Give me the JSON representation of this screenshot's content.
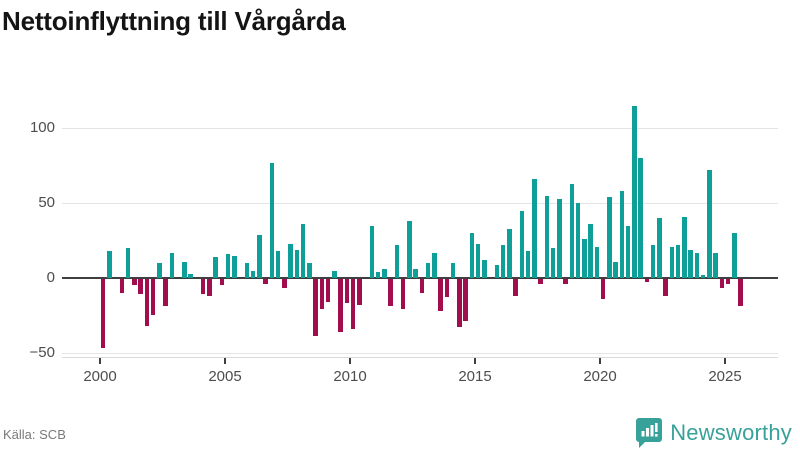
{
  "title": "Nettoinflyttning till Vårgårda",
  "source": "Källa: SCB",
  "brand": {
    "name": "Newsworthy",
    "color": "#38a199"
  },
  "chart_data": {
    "type": "bar",
    "title": "Nettoinflyttning till Vårgårda",
    "xlabel": "",
    "ylabel": "",
    "x_unit": "quarter",
    "quarters": [
      "Q1",
      "Q2",
      "Q3",
      "Q4"
    ],
    "first_quarter": "2000Q1",
    "last_quarter": "2025Q3",
    "values_by_year": {
      "2000": [
        -46,
        18,
        0,
        -9
      ],
      "2001": [
        20,
        -4,
        -10,
        -31
      ],
      "2002": [
        -24,
        10,
        -18,
        17
      ],
      "2003": [
        0,
        11,
        3,
        0
      ],
      "2004": [
        -10,
        -11,
        14,
        -4
      ],
      "2005": [
        16,
        15,
        0,
        10
      ],
      "2006": [
        5,
        29,
        -3,
        77
      ],
      "2007": [
        18,
        -6,
        23,
        19
      ],
      "2008": [
        36,
        10,
        -38,
        -20
      ],
      "2009": [
        -15,
        5,
        -35,
        -16
      ],
      "2010": [
        -33,
        -17,
        0,
        35
      ],
      "2011": [
        4,
        6,
        -18,
        22
      ],
      "2012": [
        -20,
        38,
        6,
        -9
      ],
      "2013": [
        10,
        17,
        -21,
        -12
      ],
      "2014": [
        10,
        -32,
        -28,
        30
      ],
      "2015": [
        23,
        12,
        0,
        9
      ],
      "2016": [
        22,
        33,
        -11,
        45
      ],
      "2017": [
        18,
        66,
        -3,
        55
      ],
      "2018": [
        20,
        53,
        -3,
        63
      ],
      "2019": [
        50,
        26,
        36,
        21
      ],
      "2020": [
        -13,
        54,
        11,
        58
      ],
      "2021": [
        35,
        115,
        80,
        -2
      ],
      "2022": [
        22,
        40,
        -11,
        21
      ],
      "2023": [
        22,
        41,
        19,
        17
      ],
      "2024": [
        2,
        72,
        17,
        -6
      ],
      "2025": [
        -3,
        30,
        -18
      ]
    },
    "yticks": [
      {
        "v": 100,
        "label": "100"
      },
      {
        "v": 50,
        "label": "50"
      },
      {
        "v": 0,
        "label": "0"
      },
      {
        "v": -50,
        "label": "−50"
      }
    ],
    "ylim": [
      -60,
      120
    ],
    "xticks": [
      {
        "v": 2000,
        "label": "2000"
      },
      {
        "v": 2005,
        "label": "2005"
      },
      {
        "v": 2010,
        "label": "2010"
      },
      {
        "v": 2015,
        "label": "2015"
      },
      {
        "v": 2020,
        "label": "2020"
      },
      {
        "v": 2025,
        "label": "2025"
      }
    ],
    "grid": true,
    "legend": false,
    "positive_color": "#0d9f98",
    "negative_color": "#a10d4d"
  }
}
